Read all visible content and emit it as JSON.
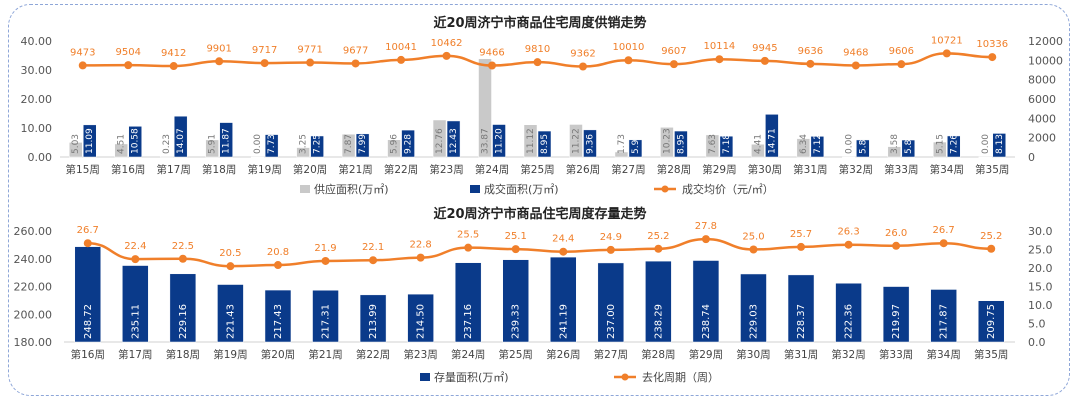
{
  "chart_data": [
    {
      "type": "bar+line",
      "title": "近20周济宁市商品住宅周度供销走势",
      "categories": [
        "第15周",
        "第16周",
        "第17周",
        "第18周",
        "第19周",
        "第20周",
        "第21周",
        "第22周",
        "第23周",
        "第24周",
        "第25周",
        "第26周",
        "第27周",
        "第28周",
        "第29周",
        "第30周",
        "第31周",
        "第32周",
        "第33周",
        "第34周",
        "第35周"
      ],
      "series": [
        {
          "name": "供应面积(万㎡)",
          "type": "bar",
          "axis": "left",
          "color": "#c9c9c9",
          "values": [
            5.03,
            4.51,
            0.23,
            5.91,
            0.0,
            3.25,
            7.87,
            5.96,
            12.76,
            33.87,
            11.12,
            11.22,
            1.73,
            10.23,
            7.63,
            4.41,
            6.34,
            0.0,
            3.58,
            5.15,
            0.0
          ]
        },
        {
          "name": "成交面积(万㎡)",
          "type": "bar",
          "axis": "left",
          "color": "#0a3a8a",
          "values": [
            11.09,
            10.58,
            14.07,
            11.87,
            7.73,
            7.25,
            7.99,
            9.28,
            12.43,
            11.2,
            8.95,
            9.36,
            5.92,
            8.95,
            7.18,
            14.71,
            7.12,
            5.88,
            5.85,
            7.26,
            8.13
          ]
        },
        {
          "name": "成交均价（元/㎡）",
          "type": "line",
          "axis": "right",
          "color": "#f07f2a",
          "values": [
            9473,
            9504,
            9412,
            9901,
            9717,
            9771,
            9677,
            10041,
            10462,
            9466,
            9810,
            9362,
            10010,
            9607,
            10114,
            9945,
            9636,
            9468,
            9606,
            10721,
            10336
          ]
        }
      ],
      "yleft": {
        "min": 0,
        "max": 40,
        "ticks": [
          "0.00",
          "10.00",
          "20.00",
          "30.00",
          "40.00"
        ]
      },
      "yright": {
        "min": 0,
        "max": 12000,
        "ticks": [
          "0",
          "2000",
          "4000",
          "6000",
          "8000",
          "10000",
          "12000"
        ]
      },
      "legend": "bottom"
    },
    {
      "type": "bar+line",
      "title": "近20周济宁市商品住宅周度存量走势",
      "categories": [
        "第16周",
        "第17周",
        "第18周",
        "第19周",
        "第20周",
        "第21周",
        "第22周",
        "第23周",
        "第24周",
        "第25周",
        "第26周",
        "第27周",
        "第28周",
        "第29周",
        "第30周",
        "第31周",
        "第32周",
        "第33周",
        "第34周",
        "第35周"
      ],
      "series": [
        {
          "name": "存量面积(万㎡)",
          "type": "bar",
          "axis": "left",
          "color": "#0a3a8a",
          "values": [
            248.72,
            235.11,
            229.16,
            221.43,
            217.43,
            217.31,
            213.99,
            214.5,
            237.16,
            239.33,
            241.19,
            237.0,
            238.29,
            238.74,
            229.03,
            228.37,
            222.36,
            219.97,
            217.87,
            209.75
          ]
        },
        {
          "name": "去化周期（周）",
          "type": "line",
          "axis": "right",
          "color": "#f07f2a",
          "values": [
            26.7,
            22.4,
            22.5,
            20.5,
            20.8,
            21.9,
            22.1,
            22.8,
            25.5,
            25.1,
            24.4,
            24.9,
            25.2,
            27.8,
            25.0,
            25.7,
            26.3,
            26.0,
            26.7,
            25.2
          ]
        }
      ],
      "yleft": {
        "min": 180,
        "max": 260,
        "ticks": [
          "180.00",
          "200.00",
          "220.00",
          "240.00",
          "260.00"
        ]
      },
      "yright": {
        "min": 0,
        "max": 30,
        "ticks": [
          "0.0",
          "5.0",
          "10.0",
          "15.0",
          "20.0",
          "25.0",
          "30.0"
        ]
      },
      "legend": "bottom"
    }
  ]
}
